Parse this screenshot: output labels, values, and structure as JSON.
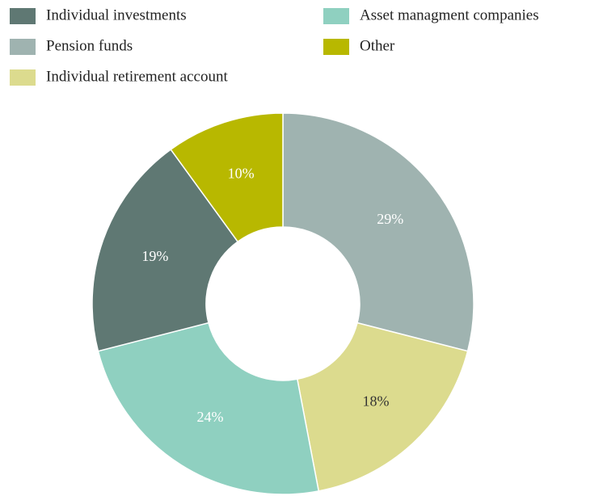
{
  "chart_data": {
    "type": "donut",
    "categories": [
      "Pension funds",
      "Individual retirement account",
      "Asset managment companies",
      "Individual investments",
      "Other"
    ],
    "values": [
      29,
      18,
      24,
      19,
      10
    ],
    "value_labels": [
      "29%",
      "18%",
      "24%",
      "19%",
      "10%"
    ],
    "colors": [
      "#9fb3b0",
      "#dcdb8e",
      "#8fd0c0",
      "#5f7873",
      "#b8b800"
    ],
    "label_colors": [
      "#ffffff",
      "#333333",
      "#ffffff",
      "#ffffff",
      "#ffffff"
    ],
    "legend": "top"
  }
}
